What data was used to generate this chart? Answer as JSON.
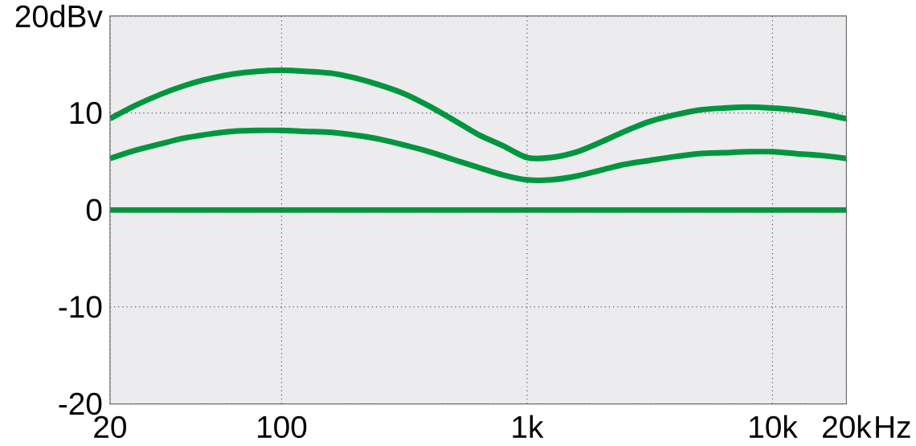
{
  "chart_data": {
    "type": "line",
    "log": "x",
    "grid": true,
    "xlim": [
      20,
      20000
    ],
    "ylim": [
      -20,
      20
    ],
    "xlabel": "Hz",
    "xticks": [
      20,
      100,
      {
        "value": 1000,
        "label": "1k"
      },
      {
        "value": 10000,
        "label": "10k"
      },
      {
        "value": 20000,
        "label": "20k"
      }
    ],
    "yticks": [
      -20,
      -10,
      0,
      10,
      {
        "value": 20,
        "label": "20dBv"
      }
    ],
    "x": [
      20,
      25,
      32,
      40,
      50,
      63,
      80,
      100,
      125,
      160,
      200,
      250,
      315,
      400,
      500,
      630,
      800,
      1000,
      1250,
      1600,
      2000,
      2500,
      3150,
      4000,
      5000,
      6300,
      8000,
      10000,
      12500,
      16000,
      20000
    ],
    "series": [
      {
        "color": "#00963f",
        "x": [
          20,
          20000
        ],
        "values": [
          0,
          0
        ]
      },
      {
        "color": "#00963f",
        "values": [
          9.4,
          10.7,
          11.9,
          12.8,
          13.5,
          14.0,
          14.3,
          14.4,
          14.3,
          14.1,
          13.6,
          12.9,
          12.0,
          10.7,
          9.3,
          7.8,
          6.6,
          5.4,
          5.4,
          6.0,
          7.0,
          8.1,
          9.1,
          9.8,
          10.3,
          10.5,
          10.6,
          10.5,
          10.3,
          9.9,
          9.4
        ]
      },
      {
        "color": "#00963f",
        "values": [
          5.3,
          6.1,
          6.8,
          7.4,
          7.8,
          8.1,
          8.2,
          8.2,
          8.1,
          8.0,
          7.7,
          7.3,
          6.7,
          6.0,
          5.2,
          4.4,
          3.6,
          3.1,
          3.1,
          3.5,
          4.1,
          4.7,
          5.1,
          5.5,
          5.8,
          5.9,
          6.0,
          6.0,
          5.8,
          5.6,
          5.3
        ]
      }
    ]
  }
}
